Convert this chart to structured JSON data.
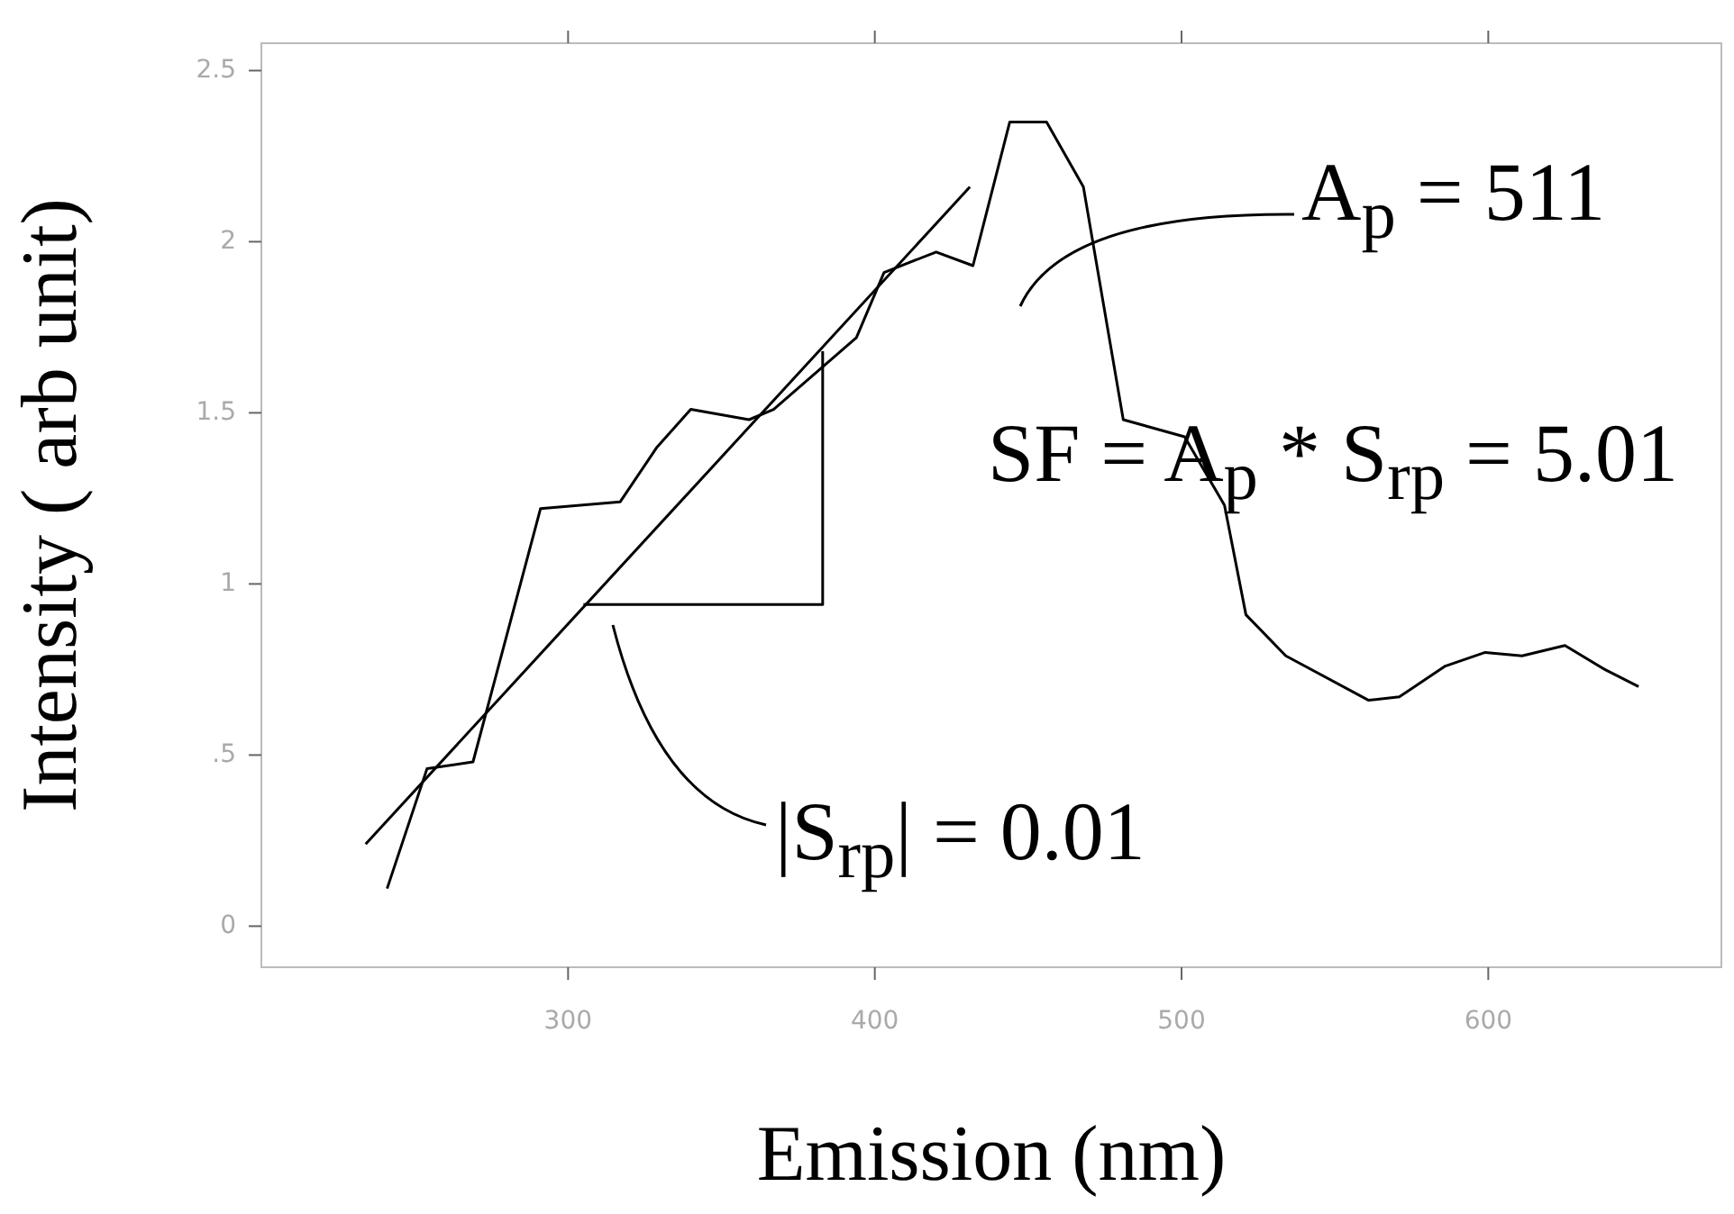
{
  "chart_data": {
    "type": "line",
    "xlabel": "Emission (nm)",
    "ylabel": "Intensity ( arb unit)",
    "xlim": [
      200,
      676
    ],
    "xticks": [
      300,
      400,
      500,
      600
    ],
    "ylim": [
      -0.12,
      2.58
    ],
    "yticks": [
      0,
      {
        "value": 0.5,
        "label": ".5"
      },
      1,
      1.5,
      2,
      2.5
    ],
    "grid": false,
    "legend": false,
    "marker": "none",
    "series": [
      {
        "color": "#000000",
        "x": [
          241,
          254,
          269,
          291,
          317,
          329,
          340,
          359,
          367,
          394,
          403,
          420,
          432,
          444,
          456,
          468,
          481,
          501,
          514,
          521,
          534,
          561,
          571,
          586,
          599,
          611,
          625,
          638,
          649
        ],
        "values": [
          0.11,
          0.46,
          0.48,
          1.22,
          1.24,
          1.4,
          1.51,
          1.48,
          1.51,
          1.72,
          1.91,
          1.97,
          1.93,
          2.35,
          2.35,
          2.16,
          1.48,
          1.43,
          1.23,
          0.91,
          0.79,
          0.66,
          0.67,
          0.76,
          0.8,
          0.79,
          0.82,
          0.75,
          0.7
        ]
      },
      {
        "type": "line",
        "color": "#000000",
        "x": [
          234,
          431
        ],
        "values": [
          0.24,
          2.16
        ]
      },
      {
        "type": "line",
        "color": "#000000",
        "x": [
          305,
          383,
          383
        ],
        "values": [
          0.94,
          0.94,
          1.68
        ]
      }
    ],
    "annotations": [
      "A$_{p}$ = 511",
      "SF = A$_{p}$ * S$_{rp}$ = 5.01",
      "|S$_{rp}$| = 0.01"
    ]
  }
}
